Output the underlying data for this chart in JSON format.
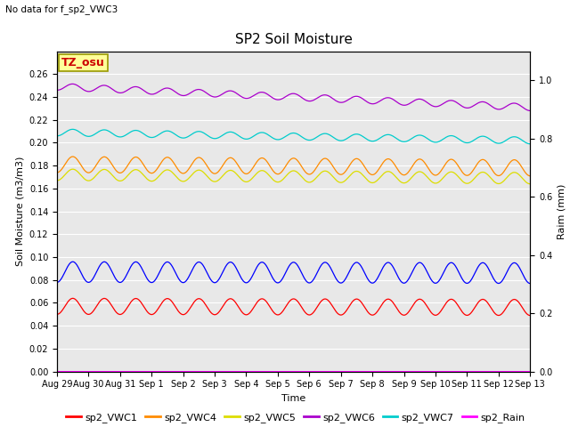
{
  "title": "SP2 Soil Moisture",
  "no_data_text": "No data for f_sp2_VWC3",
  "xlabel": "Time",
  "ylabel_left": "Soil Moisture (m3/m3)",
  "ylabel_right": "Raim (mm)",
  "annotation": "TZ_osu",
  "ylim_left": [
    0.0,
    0.28
  ],
  "ylim_right": [
    0.0,
    1.1
  ],
  "yticks_left": [
    0.0,
    0.02,
    0.04,
    0.06,
    0.08,
    0.1,
    0.12,
    0.14,
    0.16,
    0.18,
    0.2,
    0.22,
    0.24,
    0.26
  ],
  "yticks_right": [
    0.0,
    0.2,
    0.4,
    0.6,
    0.8,
    1.0
  ],
  "x_tick_labels": [
    "Aug 29",
    "Aug 30",
    "Aug 31",
    "Sep 1",
    "Sep 2",
    "Sep 3",
    "Sep 4",
    "Sep 5",
    "Sep 6",
    "Sep 7",
    "Sep 8",
    "Sep 9",
    "Sep 10",
    "Sep 11",
    "Sep 12",
    "Sep 13"
  ],
  "n_points": 1440,
  "series": {
    "sp2_VWC1": {
      "color": "#ff0000",
      "base": 0.057,
      "amp": 0.007,
      "freq": 1.0,
      "trend": -0.001
    },
    "sp2_VWC2": {
      "color": "#0000ff",
      "base": 0.087,
      "amp": 0.009,
      "freq": 1.0,
      "trend": -0.001
    },
    "sp2_VWC4": {
      "color": "#ff8c00",
      "base": 0.181,
      "amp": 0.007,
      "freq": 1.0,
      "trend": -0.003
    },
    "sp2_VWC5": {
      "color": "#dddd00",
      "base": 0.172,
      "amp": 0.005,
      "freq": 1.0,
      "trend": -0.003
    },
    "sp2_VWC6": {
      "color": "#aa00cc",
      "base": 0.249,
      "amp": 0.003,
      "freq": 1.0,
      "trend": -0.018
    },
    "sp2_VWC7": {
      "color": "#00cccc",
      "base": 0.209,
      "amp": 0.003,
      "freq": 1.0,
      "trend": -0.007
    },
    "sp2_Rain": {
      "color": "#ff00ff",
      "base": 0.0,
      "amp": 0.0,
      "freq": 0.0,
      "trend": 0.0
    }
  },
  "bg_color": "#e8e8e8",
  "fig_bg": "#ffffff",
  "grid_color": "#ffffff",
  "annotation_bg": "#ffff99",
  "annotation_fg": "#cc0000",
  "annotation_border": "#999900",
  "title_fontsize": 11,
  "label_fontsize": 8,
  "tick_fontsize": 7,
  "legend_fontsize": 8
}
